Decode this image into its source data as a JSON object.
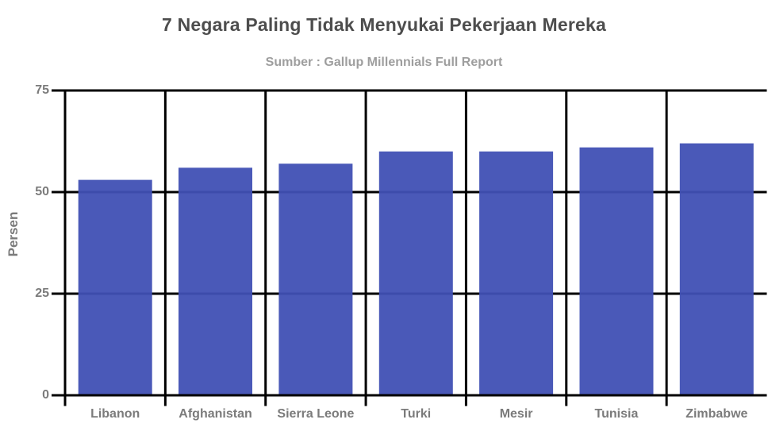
{
  "chart_data": {
    "type": "bar",
    "title": "7 Negara Paling Tidak Menyukai Pekerjaan Mereka",
    "subtitle": "Sumber : Gallup Millennials Full Report",
    "xlabel": "",
    "ylabel": "Persen",
    "categories": [
      "Libanon",
      "Afghanistan",
      "Sierra Leone",
      "Turki",
      "Mesir",
      "Tunisia",
      "Zimbabwe"
    ],
    "values": [
      53,
      56,
      57,
      60,
      60,
      61,
      62
    ],
    "yticks": [
      0,
      25,
      50,
      75
    ],
    "ylim": [
      0,
      75
    ],
    "grid": true,
    "grid_style": "full black grid, horizontal lines at each y tick, vertical lines at category boundaries, ticks extend past axes",
    "legend_position": "none",
    "colors": {
      "bar": "#4050B4",
      "grid": "#000000",
      "title": "#4d4d4d",
      "subtitle": "#9e9e9e",
      "axis_label": "#7b7b7b"
    }
  }
}
